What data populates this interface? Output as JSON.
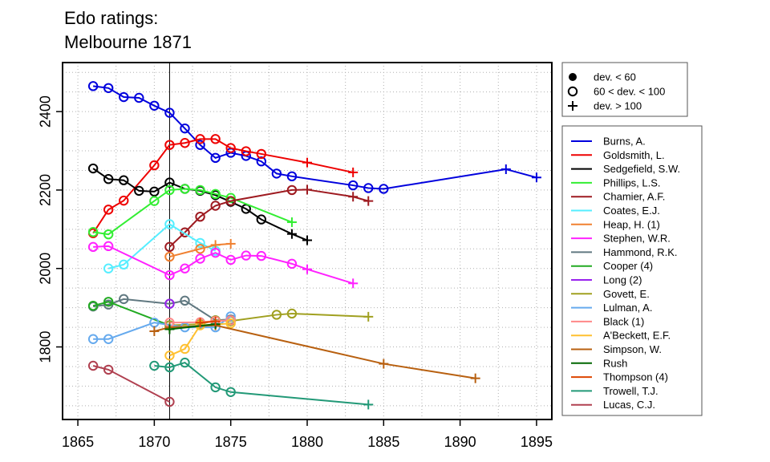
{
  "chart_data": {
    "type": "line",
    "title": [
      "Edo ratings:",
      "Melbourne 1871"
    ],
    "xlim": [
      1864,
      1896
    ],
    "ylim": [
      1615,
      2525
    ],
    "x_ticks": [
      1865,
      1870,
      1875,
      1880,
      1885,
      1890,
      1895
    ],
    "y_ticks": [
      1800,
      2000,
      2200,
      2400
    ],
    "reference_line_x": 1871,
    "grid": true,
    "marker_legend": [
      {
        "marker": "dot",
        "label": "dev. < 60"
      },
      {
        "marker": "circle",
        "label": "60 < dev. < 100"
      },
      {
        "marker": "plus",
        "label": "dev. > 100"
      }
    ],
    "series": [
      {
        "name": "Burns, A.",
        "color": "#0000dd",
        "points": [
          [
            1866,
            2465,
            "o"
          ],
          [
            1867,
            2460,
            "o"
          ],
          [
            1868,
            2437,
            "o"
          ],
          [
            1869,
            2435,
            "o"
          ],
          [
            1870,
            2415,
            "o"
          ],
          [
            1871,
            2397,
            "o"
          ],
          [
            1872,
            2357,
            "o"
          ],
          [
            1873,
            2315,
            "o"
          ],
          [
            1874,
            2282,
            "o"
          ],
          [
            1875,
            2295,
            "o"
          ],
          [
            1876,
            2287,
            "o"
          ],
          [
            1877,
            2273,
            "o"
          ],
          [
            1878,
            2242,
            "o"
          ],
          [
            1879,
            2235,
            "o"
          ],
          [
            1883,
            2212,
            "o"
          ],
          [
            1884,
            2205,
            "o"
          ],
          [
            1885,
            2203,
            "o"
          ],
          [
            1893,
            2253,
            "+"
          ],
          [
            1895,
            2232,
            "+"
          ]
        ]
      },
      {
        "name": "Goldsmith, L.",
        "color": "#ee0000",
        "points": [
          [
            1866,
            2090,
            "o"
          ],
          [
            1867,
            2150,
            "o"
          ],
          [
            1868,
            2173,
            "o"
          ],
          [
            1870,
            2263,
            "o"
          ],
          [
            1871,
            2315,
            "o"
          ],
          [
            1872,
            2320,
            "o"
          ],
          [
            1873,
            2330,
            "o"
          ],
          [
            1874,
            2330,
            "o"
          ],
          [
            1875,
            2307,
            "o"
          ],
          [
            1876,
            2299,
            "o"
          ],
          [
            1877,
            2292,
            "o"
          ],
          [
            1880,
            2270,
            "+"
          ],
          [
            1883,
            2245,
            "+"
          ]
        ]
      },
      {
        "name": "Sedgefield, S.W.",
        "color": "#000000",
        "points": [
          [
            1866,
            2255,
            "o"
          ],
          [
            1867,
            2228,
            "o"
          ],
          [
            1868,
            2225,
            "o"
          ],
          [
            1869,
            2198,
            "o"
          ],
          [
            1870,
            2196,
            "o"
          ],
          [
            1871,
            2219,
            "o"
          ],
          [
            1872,
            2203,
            "o"
          ],
          [
            1873,
            2198,
            "o"
          ],
          [
            1874,
            2187,
            "o"
          ],
          [
            1875,
            2170,
            "o"
          ],
          [
            1876,
            2152,
            "o"
          ],
          [
            1877,
            2125,
            "o"
          ],
          [
            1879,
            2088,
            "+"
          ],
          [
            1880,
            2072,
            "+"
          ]
        ]
      },
      {
        "name": "Phillips, L.S.",
        "color": "#33ee33",
        "points": [
          [
            1866,
            2093,
            "o"
          ],
          [
            1867,
            2087,
            "o"
          ],
          [
            1870,
            2172,
            "o"
          ],
          [
            1871,
            2200,
            "o"
          ],
          [
            1872,
            2203,
            "o"
          ],
          [
            1873,
            2200,
            "o"
          ],
          [
            1874,
            2190,
            "o"
          ],
          [
            1875,
            2180,
            "o"
          ],
          [
            1879,
            2118,
            "+"
          ]
        ]
      },
      {
        "name": "Chamier, A.F.",
        "color": "#9e1a20",
        "points": [
          [
            1871,
            2055,
            "o"
          ],
          [
            1872,
            2092,
            "o"
          ],
          [
            1873,
            2132,
            "o"
          ],
          [
            1874,
            2160,
            "o"
          ],
          [
            1875,
            2172,
            "o"
          ],
          [
            1879,
            2200,
            "o"
          ],
          [
            1880,
            2201,
            "+"
          ],
          [
            1883,
            2183,
            "+"
          ],
          [
            1884,
            2172,
            "+"
          ]
        ]
      },
      {
        "name": "Coates, E.J.",
        "color": "#55eeff",
        "points": [
          [
            1867,
            2000,
            "o"
          ],
          [
            1868,
            2010,
            "o"
          ],
          [
            1871,
            2113,
            "o"
          ],
          [
            1873,
            2065,
            "o"
          ],
          [
            1874,
            2045,
            "o"
          ]
        ]
      },
      {
        "name": "Heap, H. (1)",
        "color": "#f08030",
        "points": [
          [
            1871,
            2030,
            "o"
          ],
          [
            1873,
            2050,
            "o"
          ],
          [
            1874,
            2060,
            "+"
          ],
          [
            1875,
            2063,
            "+"
          ]
        ]
      },
      {
        "name": "Stephen, W.R.",
        "color": "#ff22ff",
        "points": [
          [
            1866,
            2055,
            "o"
          ],
          [
            1867,
            2057,
            "o"
          ],
          [
            1871,
            1983,
            "o"
          ],
          [
            1872,
            2000,
            "o"
          ],
          [
            1873,
            2025,
            "o"
          ],
          [
            1874,
            2040,
            "o"
          ],
          [
            1875,
            2022,
            "o"
          ],
          [
            1876,
            2033,
            "o"
          ],
          [
            1877,
            2032,
            "o"
          ],
          [
            1879,
            2012,
            "o"
          ],
          [
            1880,
            1998,
            "+"
          ],
          [
            1883,
            1962,
            "+"
          ]
        ]
      },
      {
        "name": "Hammond, R.K.",
        "color": "#607880",
        "points": [
          [
            1866,
            1903,
            "o"
          ],
          [
            1867,
            1908,
            "o"
          ],
          [
            1868,
            1922,
            "o"
          ],
          [
            1871,
            1910,
            "o"
          ],
          [
            1872,
            1918,
            "o"
          ],
          [
            1874,
            1868,
            "o"
          ],
          [
            1875,
            1870,
            "o"
          ]
        ]
      },
      {
        "name": "Cooper (4)",
        "color": "#22aa22",
        "points": [
          [
            1866,
            1905,
            "o"
          ],
          [
            1867,
            1915,
            "o"
          ],
          [
            1871,
            1855,
            "o"
          ]
        ]
      },
      {
        "name": "Long (2)",
        "color": "#9922ee",
        "points": [
          [
            1871,
            1910,
            "o"
          ]
        ]
      },
      {
        "name": "Govett, E.",
        "color": "#a0a020",
        "points": [
          [
            1871,
            1855,
            "o"
          ],
          [
            1873,
            1858,
            "o"
          ],
          [
            1874,
            1868,
            "o"
          ],
          [
            1875,
            1866,
            "o"
          ],
          [
            1878,
            1882,
            "o"
          ],
          [
            1879,
            1885,
            "o"
          ],
          [
            1884,
            1877,
            "+"
          ]
        ]
      },
      {
        "name": "Lulman, A.",
        "color": "#66aaee",
        "points": [
          [
            1866,
            1820,
            "o"
          ],
          [
            1867,
            1820,
            "o"
          ],
          [
            1870,
            1862,
            "o"
          ],
          [
            1872,
            1850,
            "o"
          ],
          [
            1874,
            1850,
            "o"
          ],
          [
            1875,
            1878,
            "o"
          ]
        ]
      },
      {
        "name": "Black (1)",
        "color": "#ff8888",
        "points": [
          [
            1871,
            1862,
            "o"
          ],
          [
            1873,
            1863,
            "o"
          ],
          [
            1874,
            1866,
            "o"
          ],
          [
            1875,
            1868,
            "o"
          ]
        ]
      },
      {
        "name": "A'Beckett, E.F.",
        "color": "#ffc030",
        "points": [
          [
            1871,
            1778,
            "o"
          ],
          [
            1872,
            1795,
            "o"
          ],
          [
            1873,
            1855,
            "o"
          ],
          [
            1875,
            1860,
            "o"
          ]
        ]
      },
      {
        "name": "Simpson, W.",
        "color": "#b86010",
        "points": [
          [
            1870,
            1840,
            "+"
          ],
          [
            1871,
            1850,
            "+"
          ],
          [
            1874,
            1855,
            "+"
          ],
          [
            1885,
            1757,
            "+"
          ],
          [
            1891,
            1720,
            "+"
          ]
        ]
      },
      {
        "name": "Rush",
        "color": "#006600",
        "points": [
          [
            1871,
            1845,
            "+"
          ],
          [
            1874,
            1858,
            "+"
          ]
        ]
      },
      {
        "name": "Thompson (4)",
        "color": "#dd4400",
        "points": [
          [
            1873,
            1862,
            "+"
          ],
          [
            1874,
            1865,
            "+"
          ]
        ]
      },
      {
        "name": "Trowell, T.J.",
        "color": "#229977",
        "points": [
          [
            1870,
            1752,
            "o"
          ],
          [
            1871,
            1748,
            "o"
          ],
          [
            1872,
            1760,
            "o"
          ],
          [
            1874,
            1697,
            "o"
          ],
          [
            1875,
            1685,
            "o"
          ],
          [
            1884,
            1653,
            "+"
          ]
        ]
      },
      {
        "name": "Lucas, C.J.",
        "color": "#b04050",
        "points": [
          [
            1866,
            1752,
            "o"
          ],
          [
            1867,
            1742,
            "o"
          ],
          [
            1871,
            1660,
            "o"
          ]
        ]
      }
    ]
  }
}
